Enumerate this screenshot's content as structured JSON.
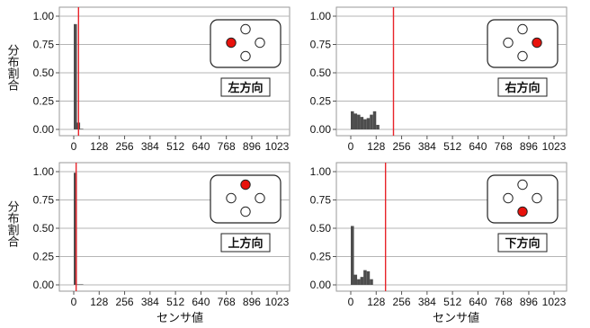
{
  "ylabel": "分布割合",
  "xlabel": "センサ値",
  "colors": {
    "bar": "#4d4d4d",
    "threshold": "#e8232a",
    "grid": "#b5b5b5",
    "active_dot": "#e8120c"
  },
  "chart_data": [
    {
      "type": "bar",
      "title": "",
      "label": "左方向",
      "active_position": "left",
      "xlim": [
        0,
        1023
      ],
      "ylim": [
        0,
        1
      ],
      "x_ticks": [
        0,
        128,
        256,
        384,
        512,
        640,
        768,
        896,
        1023
      ],
      "y_ticks": [
        0.0,
        0.25,
        0.5,
        0.75,
        1.0
      ],
      "y_tick_labels": [
        "0.00",
        "0.25",
        "0.50",
        "0.75",
        "1.00"
      ],
      "bin_width": 16,
      "values": [
        0.93,
        0.06,
        0.005
      ],
      "threshold": 24,
      "grid": "horizontal"
    },
    {
      "type": "bar",
      "title": "",
      "label": "右方向",
      "active_position": "right",
      "xlim": [
        0,
        1023
      ],
      "ylim": [
        0,
        1
      ],
      "x_ticks": [
        0,
        128,
        256,
        384,
        512,
        640,
        768,
        896,
        1023
      ],
      "y_ticks": [
        0.0,
        0.25,
        0.5,
        0.75,
        1.0
      ],
      "y_tick_labels": [
        "0.00",
        "0.25",
        "0.50",
        "0.75",
        "1.00"
      ],
      "bin_width": 16,
      "values": [
        0.16,
        0.14,
        0.13,
        0.11,
        0.09,
        0.1,
        0.13,
        0.16,
        0.04
      ],
      "threshold": 215,
      "grid": "horizontal"
    },
    {
      "type": "bar",
      "title": "",
      "label": "上方向",
      "active_position": "top",
      "xlim": [
        0,
        1023
      ],
      "ylim": [
        0,
        1
      ],
      "x_ticks": [
        0,
        128,
        256,
        384,
        512,
        640,
        768,
        896,
        1023
      ],
      "y_ticks": [
        0.0,
        0.25,
        0.5,
        0.75,
        1.0
      ],
      "y_tick_labels": [
        "0.00",
        "0.25",
        "0.50",
        "0.75",
        "1.00"
      ],
      "bin_width": 16,
      "values": [
        0.99,
        0.005,
        0.003
      ],
      "threshold": 12,
      "grid": "horizontal"
    },
    {
      "type": "bar",
      "title": "",
      "label": "下方向",
      "active_position": "bottom",
      "xlim": [
        0,
        1023
      ],
      "ylim": [
        0,
        1
      ],
      "x_ticks": [
        0,
        128,
        256,
        384,
        512,
        640,
        768,
        896,
        1023
      ],
      "y_ticks": [
        0.0,
        0.25,
        0.5,
        0.75,
        1.0
      ],
      "y_tick_labels": [
        "0.00",
        "0.25",
        "0.50",
        "0.75",
        "1.00"
      ],
      "bin_width": 16,
      "values": [
        0.52,
        0.09,
        0.05,
        0.07,
        0.13,
        0.12,
        0.05
      ],
      "threshold": 175,
      "grid": "horizontal"
    }
  ]
}
